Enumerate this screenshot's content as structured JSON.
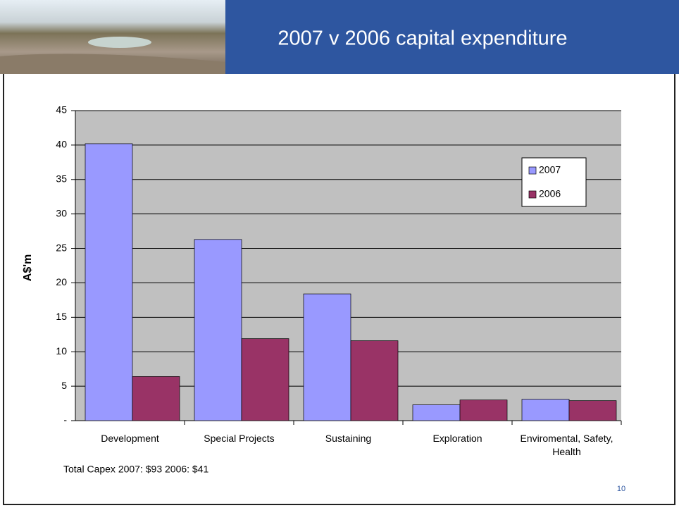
{
  "header": {
    "title": "2007 v 2006 capital expenditure"
  },
  "chart_data": {
    "type": "bar",
    "categories": [
      "Development",
      "Special Projects",
      "Sustaining",
      "Exploration",
      "Enviromental, Safety, Health"
    ],
    "series": [
      {
        "name": "2007",
        "color": "#9999ff",
        "values": [
          40.2,
          26.3,
          18.4,
          2.3,
          3.1
        ]
      },
      {
        "name": "2006",
        "color": "#993366",
        "values": [
          6.4,
          11.9,
          11.6,
          3.0,
          2.9
        ]
      }
    ],
    "y_label": "A$'m",
    "ylim": [
      0,
      45
    ],
    "yticks": [
      {
        "value": 0,
        "label": "-"
      },
      5,
      10,
      15,
      20,
      25,
      30,
      35,
      40,
      45
    ],
    "grid": true,
    "legend": "upper right"
  },
  "footnote": "Total Capex   2007: $93   2006: $41",
  "page_number": "10"
}
